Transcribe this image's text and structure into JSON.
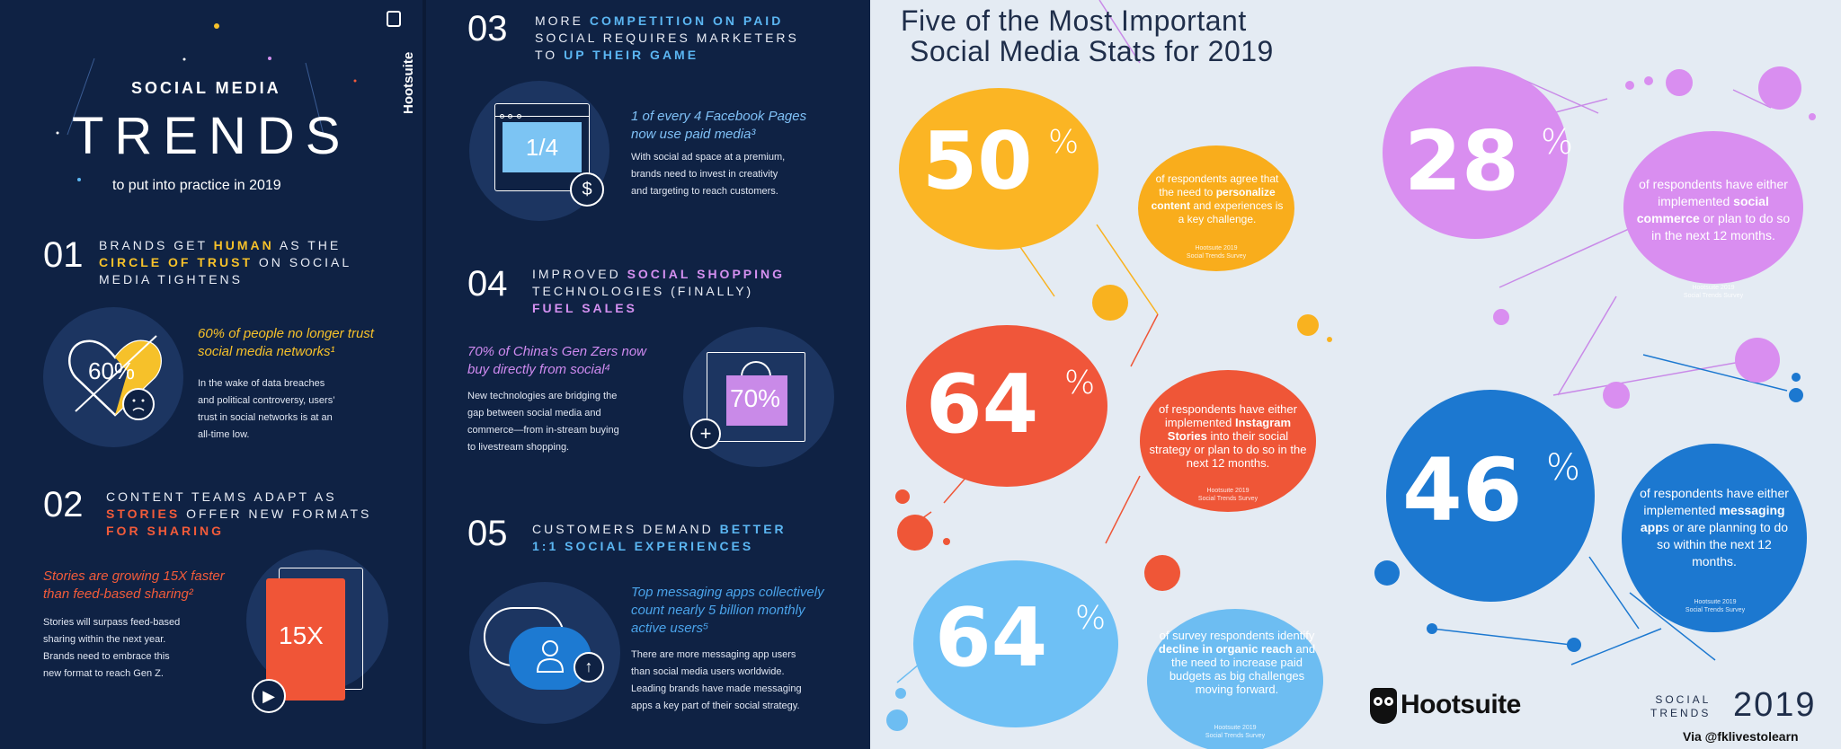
{
  "left": {
    "header": {
      "pretitle": "SOCIAL MEDIA",
      "title": "TRENDS",
      "subtitle": "to put into practice in 2019",
      "brand": "Hootsuite"
    },
    "s1": {
      "num": "01",
      "title_a": "BRANDS GET ",
      "title_hl1": "HUMAN",
      "title_b": " AS THE",
      "title_hl2": "CIRCLE OF TRUST",
      "title_c": " ON SOCIAL",
      "title_d": "MEDIA TIGHTENS",
      "icon_value": "60%",
      "stat_line1": "60% of people no longer trust",
      "stat_line2": "social media networks¹",
      "body": [
        "In the wake of data breaches",
        "and political controversy, users’",
        "trust in social networks is at an",
        "all-time low."
      ]
    },
    "s2": {
      "num": "02",
      "title_a": "CONTENT TEAMS ADAPT AS",
      "title_hl1": "STORIES",
      "title_b": " OFFER NEW FORMATS",
      "title_hl2": "FOR SHARING",
      "icon_value": "15X",
      "stat_line1": "Stories are growing 15X faster",
      "stat_line2": "than feed-based sharing²",
      "body": [
        "Stories will surpass feed-based",
        "sharing within the next year.",
        "Brands need to embrace this",
        "new format to reach Gen Z."
      ]
    },
    "s3": {
      "num": "03",
      "title_a": "MORE ",
      "title_hl1": "COMPETITION ON PAID",
      "title_b": "SOCIAL REQUIRES MARKETERS",
      "title_c": "TO ",
      "title_hl2": "UP THEIR GAME",
      "icon_value": "1/4",
      "stat_line1": "1 of every 4 Facebook Pages",
      "stat_line2": "now use paid media³",
      "body": [
        "With social ad space at a premium,",
        "brands need to invest in creativity",
        "and targeting to reach customers."
      ]
    },
    "s4": {
      "num": "04",
      "title_a": "IMPROVED ",
      "title_hl1": "SOCIAL SHOPPING",
      "title_b": "TECHNOLOGIES (FINALLY)",
      "title_hl2": "FUEL SALES",
      "icon_value": "70%",
      "stat_line1": "70% of China’s Gen Zers now",
      "stat_line2": "buy directly from social⁴",
      "body": [
        "New technologies are bridging the",
        "gap between social media and",
        "commerce—from in-stream buying",
        "to livestream shopping."
      ]
    },
    "s5": {
      "num": "05",
      "title_a": "CUSTOMERS DEMAND ",
      "title_hl1": "BETTER",
      "title_hl2": "1:1 SOCIAL EXPERIENCES",
      "stat_line1": "Top messaging apps collectively",
      "stat_line2": "count nearly 5 billion monthly",
      "stat_line3": "active users⁵",
      "body": [
        "There are more messaging app users",
        "than social media users worldwide.",
        "Leading brands have made messaging",
        "apps a key part of their social strategy."
      ]
    }
  },
  "right": {
    "title_line1": "Five of the Most Important",
    "title_line2": "Social Media Stats for 2019",
    "source": "Hootsuite 2019\nSocial Trends Survey",
    "stats": [
      {
        "value": "50",
        "unit": "%",
        "pre": "of respondents agree that the need to",
        "bold": "personalize content",
        "post": "and experiences is a key challenge.",
        "color": "#fbb524",
        "text_bg": "#f9ad1c"
      },
      {
        "value": "64",
        "unit": "%",
        "pre": "of respondents have either implemented",
        "bold": "Instagram Stories",
        "post": "into their social strategy or plan to do so in the next 12 months.",
        "color": "#f0563a",
        "text_bg": "#ef5637"
      },
      {
        "value": "64",
        "unit": "%",
        "pre": "of survey respondents identify",
        "bold": "decline in organic reach",
        "post": "and the need to increase paid budgets as big challenges moving forward.",
        "color": "#6ec0f5",
        "text_bg": "#6dbdf2"
      },
      {
        "value": "28",
        "unit": "%",
        "pre": "of respondents have either implemented",
        "bold": "social commerce",
        "post": "or plan to do so in the next 12 months.",
        "color": "#d98ef0",
        "text_bg": "#d98ef0"
      },
      {
        "value": "46",
        "unit": "%",
        "pre": "of respondents have either implemented",
        "bold": "messaging app",
        "post": "s or are planning to do so within the next 12 months.",
        "color": "#1c78d0",
        "text_bg": "#1c78d0"
      }
    ],
    "brand": "Hootsuite",
    "footer_trends_a": "SOCIAL",
    "footer_trends_b": "TRENDS",
    "footer_year": "2019",
    "credit": "Via @fklivestolearn"
  }
}
